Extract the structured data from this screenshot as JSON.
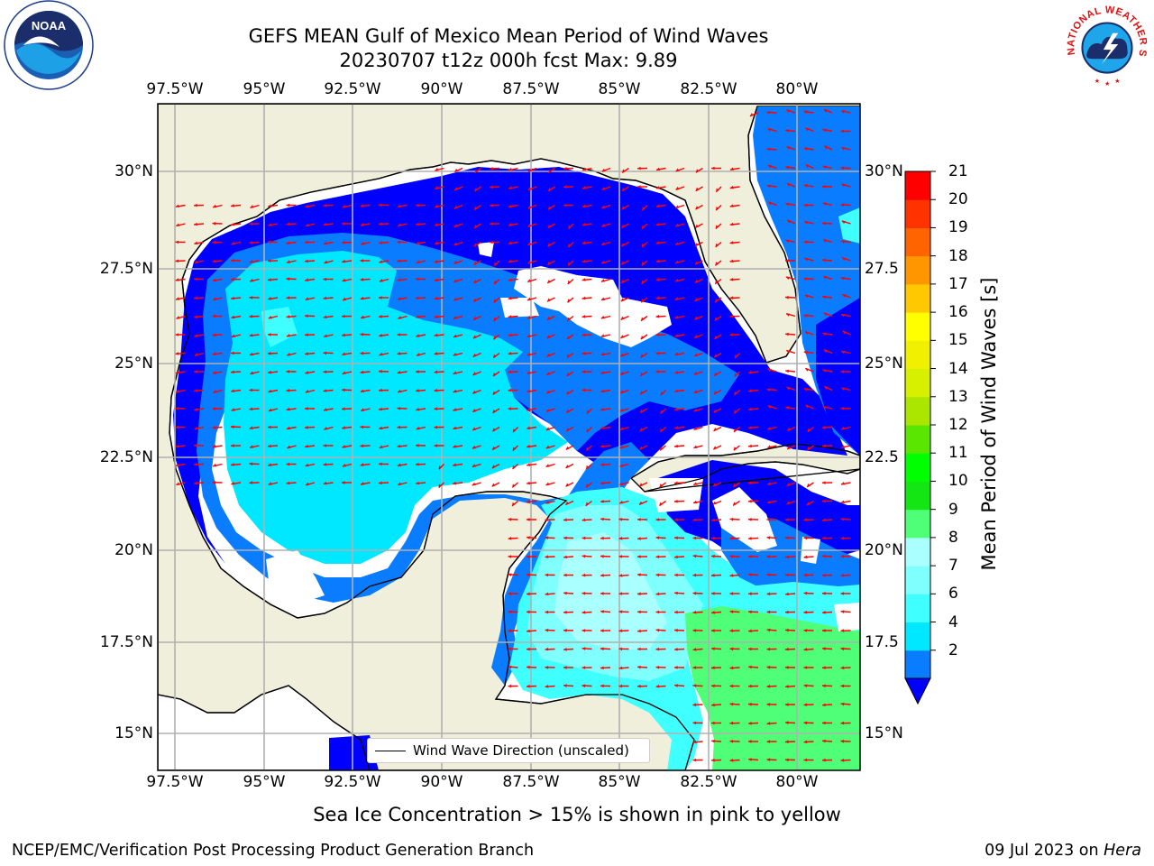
{
  "header": {
    "title_line1": "GEFS MEAN Gulf of Mexico Mean Period of Wind Waves",
    "title_line2": "20230707 t12z 000h fcst   Max: 9.89"
  },
  "logos": {
    "left": "NOAA",
    "left_ring": "NATIONAL OCEANIC AND ATMOSPHERIC ADMINISTRATION · U.S. DEPARTMENT OF COMMERCE",
    "right_ring": "NATIONAL WEATHER SERVICE"
  },
  "map": {
    "lon_labels": [
      "97.5°W",
      "95°W",
      "92.5°W",
      "90°W",
      "87.5°W",
      "85°W",
      "82.5°W",
      "80°W"
    ],
    "lat_labels_left": [
      "30°N",
      "27.5°N",
      "25°N",
      "22.5°N",
      "20°N",
      "17.5°N",
      "15°N"
    ],
    "lat_labels_right": [
      "30°N",
      "27.5",
      "25°N",
      "22.5",
      "20°N",
      "17.5",
      "15°N"
    ],
    "legend_label": "Wind Wave Direction (unscaled)",
    "land_color": "#efefdb",
    "arrow_color": "#ff0000"
  },
  "colorbar": {
    "label": "Mean Period of Wind Waves [s]",
    "ticks": [
      "2",
      "4",
      "6",
      "7",
      "8",
      "9",
      "10",
      "11",
      "12",
      "13",
      "14",
      "15",
      "16",
      "17",
      "18",
      "19",
      "20",
      "21"
    ],
    "colors": [
      "#0a7cff",
      "#00e8ff",
      "#40ffff",
      "#80ffff",
      "#aaffff",
      "#50ff78",
      "#14e614",
      "#00ff00",
      "#5ae600",
      "#aae600",
      "#d7f000",
      "#f0f000",
      "#ffff00",
      "#ffc800",
      "#ff9600",
      "#ff6400",
      "#ff3200",
      "#ff0000"
    ],
    "under_color": "#0000ff"
  },
  "note": "Sea Ice Concentration > 15% is shown in pink to yellow",
  "footer": {
    "left": "NCEP/EMC/Verification Post Processing Product Generation Branch",
    "right_date": "09 Jul 2023 on ",
    "right_host": "Hera"
  }
}
